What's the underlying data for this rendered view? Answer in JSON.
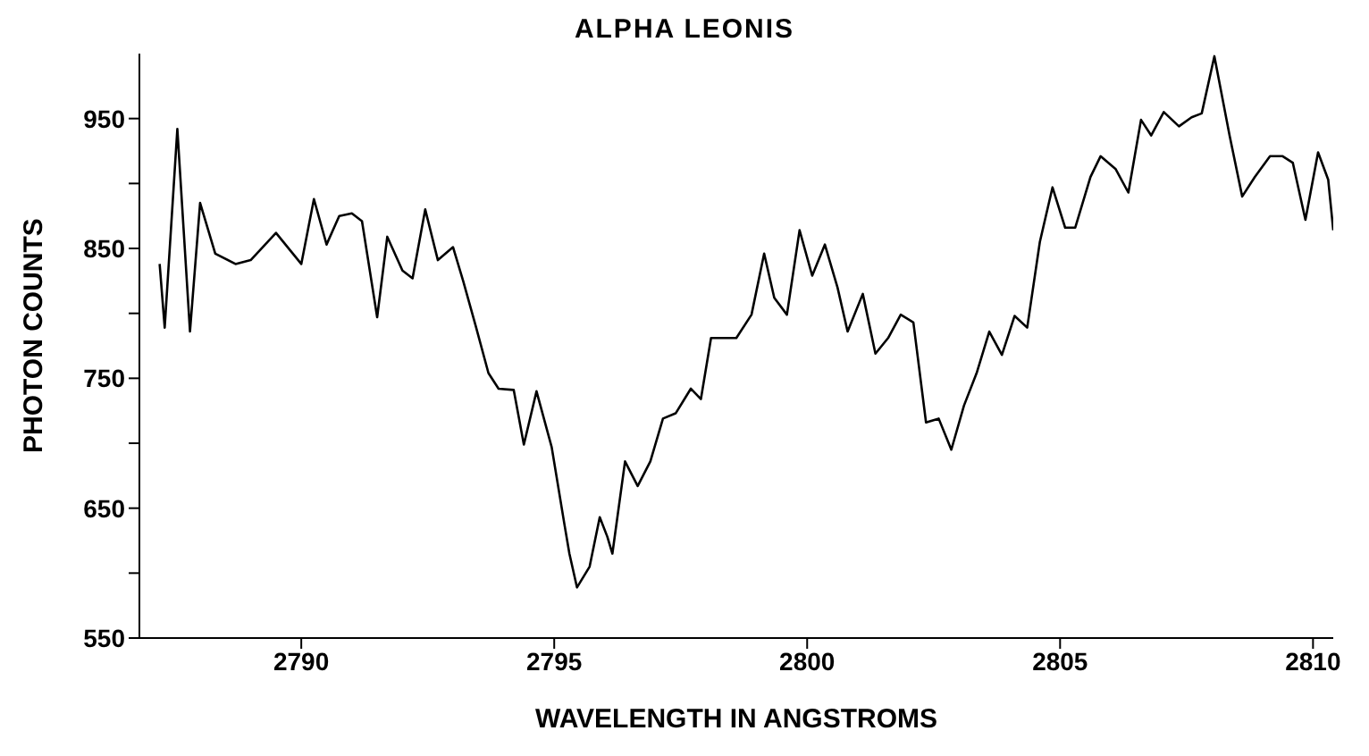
{
  "chart_data": {
    "type": "line",
    "title": "ALPHA LEONIS",
    "xlabel": "WAVELENGTH IN ANGSTROMS",
    "ylabel": "PHOTON COUNTS",
    "x": [
      2787.2,
      2787.3,
      2787.55,
      2787.8,
      2788.0,
      2788.3,
      2788.7,
      2789.0,
      2789.5,
      2790.0,
      2790.25,
      2790.5,
      2790.75,
      2791.0,
      2791.2,
      2791.5,
      2791.7,
      2792.0,
      2792.2,
      2792.45,
      2792.7,
      2793.0,
      2793.2,
      2793.45,
      2793.7,
      2793.9,
      2794.2,
      2794.4,
      2794.65,
      2794.95,
      2795.2,
      2795.3,
      2795.45,
      2795.7,
      2795.9,
      2796.05,
      2796.15,
      2796.4,
      2796.65,
      2796.9,
      2797.15,
      2797.4,
      2797.7,
      2797.9,
      2798.1,
      2798.4,
      2798.6,
      2798.9,
      2799.15,
      2799.35,
      2799.6,
      2799.85,
      2800.1,
      2800.35,
      2800.6,
      2800.8,
      2801.1,
      2801.35,
      2801.6,
      2801.85,
      2802.1,
      2802.35,
      2802.6,
      2802.85,
      2803.1,
      2803.35,
      2803.6,
      2803.85,
      2804.1,
      2804.35,
      2804.6,
      2804.85,
      2805.1,
      2805.3,
      2805.6,
      2805.8,
      2806.1,
      2806.35,
      2806.6,
      2806.8,
      2807.05,
      2807.35,
      2807.6,
      2807.8,
      2808.05,
      2808.35,
      2808.6,
      2808.85,
      2809.15,
      2809.4,
      2809.6,
      2809.85,
      2810.1,
      2810.3,
      2810.4
    ],
    "series": [
      {
        "color": "#000000",
        "values": [
          838,
          789,
          942,
          786,
          885,
          846,
          838,
          841,
          862,
          838,
          888,
          853,
          875,
          877,
          871,
          797,
          859,
          833,
          827,
          880,
          841,
          851,
          825,
          790,
          754,
          742,
          741,
          699,
          740,
          697,
          638,
          615,
          589,
          605,
          643,
          628,
          615,
          686,
          667,
          686,
          719,
          723,
          742,
          734,
          781,
          781,
          781,
          799,
          846,
          812,
          799,
          864,
          829,
          853,
          820,
          786,
          815,
          769,
          781,
          799,
          793,
          716,
          719,
          695,
          729,
          754,
          786,
          768,
          798,
          789,
          855,
          897,
          866,
          866,
          905,
          921,
          911,
          893,
          949,
          937,
          955,
          944,
          951,
          954,
          998,
          937,
          890,
          905,
          921,
          921,
          916,
          872,
          924,
          903,
          864
        ]
      }
    ],
    "xlim": [
      2786.8,
      2810.4
    ],
    "xticks": [
      2790,
      2795,
      2800,
      2805,
      2810
    ],
    "ylim": [
      550,
      1000
    ],
    "yticks": [
      550,
      {
        "value": 600,
        "label": null
      },
      650,
      {
        "value": 700,
        "label": null
      },
      750,
      {
        "value": 800,
        "label": null
      },
      850,
      {
        "value": 900,
        "label": null
      },
      950
    ],
    "grid": false,
    "legend": false,
    "marker": "none",
    "line_style": "solid"
  }
}
